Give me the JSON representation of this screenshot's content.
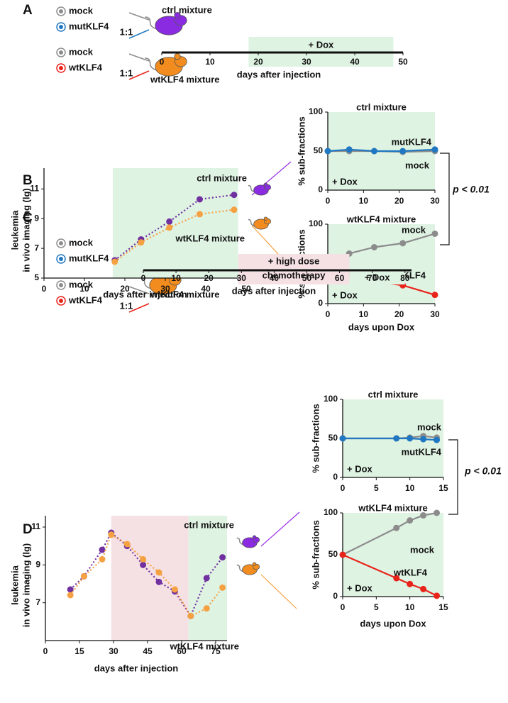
{
  "panel_labels": [
    "A",
    "B",
    "C",
    "D"
  ],
  "schemes": [
    {
      "groups": [
        {
          "items": [
            "mock",
            "mutKLF4"
          ],
          "ratio": "1:1",
          "mixture": "ctrl mixture"
        },
        {
          "items": [
            "mock",
            "wtKLF4"
          ],
          "ratio": "1:1",
          "mixture": "wtKLF4 mixture"
        }
      ]
    },
    {
      "groups": [
        {
          "items": [
            "mock",
            "mutKLF4"
          ],
          "ratio": "1:1",
          "mixture": "ctrl mixture"
        },
        {
          "items": [
            "mock",
            "wtKLF4"
          ],
          "ratio": "1:1",
          "mixture": "wtKLF4 mixture"
        }
      ]
    }
  ],
  "p_values": [
    "p < 0.01",
    "p < 0.01"
  ],
  "chart_data": [
    {
      "type": "timeline",
      "xlabel": "days after injection",
      "xlim": [
        0,
        50
      ],
      "xticks": [
        0,
        10,
        20,
        30,
        40,
        50
      ],
      "bands": [
        {
          "label": [
            "+ Dox"
          ],
          "start": 18,
          "end": 48,
          "color": "#dff3e3",
          "text_color": "#1a9a3a"
        }
      ]
    },
    {
      "type": "line",
      "linestyle": "dotted",
      "xlabel": "days after injection",
      "ylabel": [
        "leukemia",
        "in vivo imaging (lg)"
      ],
      "xlim": [
        0,
        50
      ],
      "ylim": [
        5,
        12.4
      ],
      "xticks": [
        0,
        10,
        20,
        30,
        40,
        50
      ],
      "yticks": [
        5,
        7,
        9,
        11
      ],
      "bands": [
        {
          "start": 17,
          "end": 48,
          "color": "#dff3e3"
        }
      ],
      "x": [
        17.5,
        24,
        31,
        38.5,
        47
      ],
      "series": [
        {
          "name": "ctrl mixture",
          "color": "#7030a0",
          "values": [
            6.2,
            7.6,
            8.8,
            10.3,
            10.6
          ]
        },
        {
          "name": "wtKLF4 mixture",
          "color": "#f5a142",
          "values": [
            6.1,
            7.4,
            8.4,
            9.3,
            9.6
          ]
        }
      ]
    },
    {
      "type": "line",
      "linestyle": "solid",
      "title": "ctrl mixture",
      "title_color": "#9b30e8",
      "ylabel": [
        "% sub-fractions"
      ],
      "annotation": "+ Dox",
      "xlim": [
        0,
        30
      ],
      "ylim": [
        0,
        100
      ],
      "xticks": [
        0,
        10,
        20,
        30
      ],
      "yticks": [
        0,
        50,
        100
      ],
      "bands": [
        {
          "start": 0,
          "end": 30,
          "color": "#dff3e3"
        }
      ],
      "x": [
        0,
        6,
        13,
        21,
        30
      ],
      "series": [
        {
          "name": "mock",
          "color": "#8c8c8c",
          "values": [
            50,
            50,
            50,
            49,
            50
          ]
        },
        {
          "name": "mutKLF4",
          "color": "#1f78c1",
          "values": [
            50,
            52,
            50,
            50,
            52
          ]
        }
      ]
    },
    {
      "type": "line",
      "linestyle": "solid",
      "title": "wtKLF4 mixture",
      "title_color": "#f5a142",
      "xlabel": "days upon Dox",
      "ylabel": [
        "% sub-fractions"
      ],
      "annotation": "+ Dox",
      "xlim": [
        0,
        30
      ],
      "ylim": [
        0,
        100
      ],
      "xticks": [
        0,
        10,
        20,
        30
      ],
      "yticks": [
        0,
        50,
        100
      ],
      "bands": [
        {
          "start": 0,
          "end": 30,
          "color": "#dff3e3"
        }
      ],
      "x": [
        0,
        6,
        13,
        21,
        30
      ],
      "series": [
        {
          "name": "mock",
          "color": "#8c8c8c",
          "values": [
            50,
            63,
            71,
            76,
            88
          ]
        },
        {
          "name": "wtKLF4",
          "color": "#e8231a",
          "values": [
            50,
            36,
            28,
            23,
            11
          ]
        }
      ]
    },
    {
      "type": "timeline",
      "xlabel": "days after injection",
      "xlim": [
        0,
        82
      ],
      "xticks": [
        0,
        10,
        20,
        30,
        40,
        50,
        60,
        70,
        80
      ],
      "bands": [
        {
          "label": [
            "+ high dose",
            "chemotherapy"
          ],
          "start": 29,
          "end": 63,
          "color": "#f5e1e4",
          "text_color": "#a03030"
        },
        {
          "label": [
            "+ Dox"
          ],
          "start": 63,
          "end": 80,
          "color": "#dff3e3",
          "text_color": "#1a9a3a"
        }
      ]
    },
    {
      "type": "line",
      "linestyle": "dotted",
      "xlabel": "days after injection",
      "ylabel": [
        "leukemia",
        "in vivo imaging (lg)"
      ],
      "xlim": [
        0,
        80
      ],
      "ylim": [
        5,
        11.6
      ],
      "xticks": [
        0,
        15,
        30,
        45,
        60,
        75
      ],
      "yticks": [
        7,
        9,
        11
      ],
      "bands": [
        {
          "start": 29,
          "end": 63,
          "color": "#f5e1e4"
        },
        {
          "start": 63,
          "end": 80,
          "color": "#dff3e3"
        }
      ],
      "x": [
        11,
        17,
        25,
        29,
        36,
        43,
        50,
        57,
        64,
        71,
        78
      ],
      "series": [
        {
          "name": "ctrl mixture",
          "color": "#7030a0",
          "values": [
            7.7,
            8.4,
            9.8,
            10.7,
            10.0,
            9.0,
            8.1,
            7.6,
            6.3,
            8.3,
            9.4
          ]
        },
        {
          "name": "wtKLF4 mixture",
          "color": "#f5a142",
          "values": [
            7.4,
            8.4,
            9.3,
            10.6,
            10.1,
            9.3,
            8.6,
            7.7,
            6.3,
            6.7,
            7.8
          ]
        }
      ]
    },
    {
      "type": "line",
      "linestyle": "solid",
      "title": "ctrl mixture",
      "title_color": "#9b30e8",
      "ylabel": [
        "% sub-fractions"
      ],
      "annotation": "+ Dox",
      "xlim": [
        0,
        15
      ],
      "ylim": [
        0,
        100
      ],
      "xticks": [
        0,
        5,
        10,
        15
      ],
      "yticks": [
        0,
        50,
        100
      ],
      "bands": [
        {
          "start": 0,
          "end": 15,
          "color": "#dff3e3"
        }
      ],
      "x": [
        0,
        8,
        10,
        12,
        14
      ],
      "series": [
        {
          "name": "mock",
          "color": "#8c8c8c",
          "values": [
            50,
            50,
            51,
            53,
            51
          ]
        },
        {
          "name": "mutKLF4",
          "color": "#1f78c1",
          "values": [
            50,
            50,
            50,
            49,
            48
          ]
        }
      ]
    },
    {
      "type": "line",
      "linestyle": "solid",
      "title": "wtKLF4 mixture",
      "title_color": "#f5a142",
      "xlabel": "days upon Dox",
      "ylabel": [
        "% sub-fractions"
      ],
      "annotation": "+ Dox",
      "xlim": [
        0,
        15
      ],
      "ylim": [
        0,
        100
      ],
      "xticks": [
        0,
        5,
        10,
        15
      ],
      "yticks": [
        0,
        50,
        100
      ],
      "bands": [
        {
          "start": 0,
          "end": 15,
          "color": "#dff3e3"
        }
      ],
      "x": [
        0,
        8,
        10,
        12,
        14
      ],
      "series": [
        {
          "name": "mock",
          "color": "#8c8c8c",
          "values": [
            50,
            82,
            91,
            97,
            100
          ]
        },
        {
          "name": "wtKLF4",
          "color": "#e8231a",
          "values": [
            50,
            22,
            15,
            9,
            1
          ]
        }
      ]
    }
  ]
}
